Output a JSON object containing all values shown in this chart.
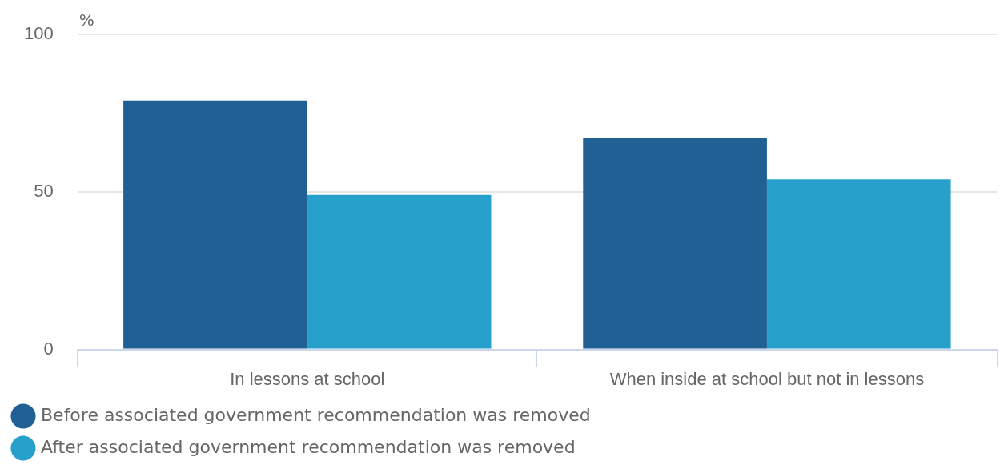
{
  "chart_data": {
    "type": "bar",
    "ylabel": "%",
    "categories": [
      "In lessons at school",
      "When inside at school but not in lessons"
    ],
    "series": [
      {
        "name": "Before associated government recommendation was removed",
        "color": "#216094",
        "values": [
          79,
          67
        ]
      },
      {
        "name": "After associated government recommendation was removed",
        "color": "#28a0cc",
        "values": [
          49,
          54
        ]
      }
    ],
    "ylim": [
      0,
      100
    ],
    "yticks": [
      0,
      50,
      100
    ],
    "grid": "y",
    "legend": "bottom left"
  }
}
